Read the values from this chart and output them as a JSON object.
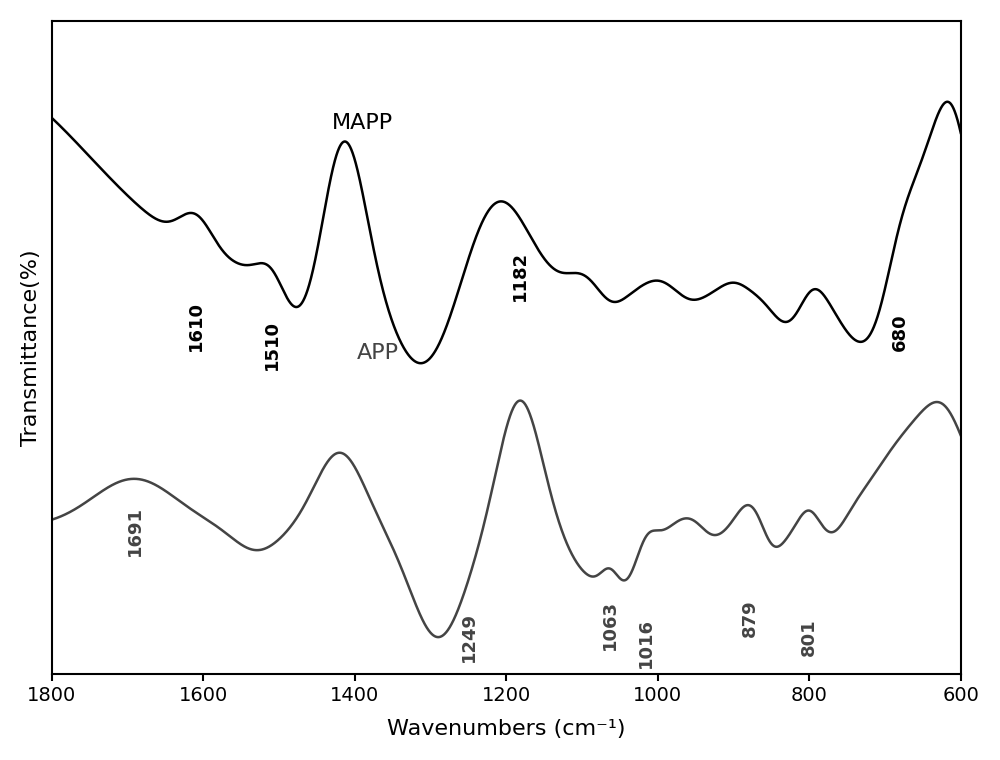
{
  "xlabel": "Wavenumbers (cm⁻¹)",
  "ylabel": "Transmittance(%)",
  "xlim": [
    1800,
    600
  ],
  "background_color": "#ffffff",
  "line_color_mapp": "#000000",
  "line_color_app": "#444444",
  "annotations_mapp": [
    {
      "x": 1610,
      "label": "1610"
    },
    {
      "x": 1510,
      "label": "1510"
    },
    {
      "x": 1182,
      "label": "1182"
    },
    {
      "x": 680,
      "label": "680"
    }
  ],
  "annotations_app": [
    {
      "x": 1691,
      "label": "1691"
    },
    {
      "x": 1249,
      "label": "1249"
    },
    {
      "x": 1063,
      "label": "1063"
    },
    {
      "x": 1016,
      "label": "1016"
    },
    {
      "x": 879,
      "label": "879"
    },
    {
      "x": 801,
      "label": "801"
    }
  ],
  "label_mapp": "MAPP",
  "label_app": "APP",
  "axis_fontsize": 16,
  "annot_fontsize": 13,
  "tick_fontsize": 14
}
